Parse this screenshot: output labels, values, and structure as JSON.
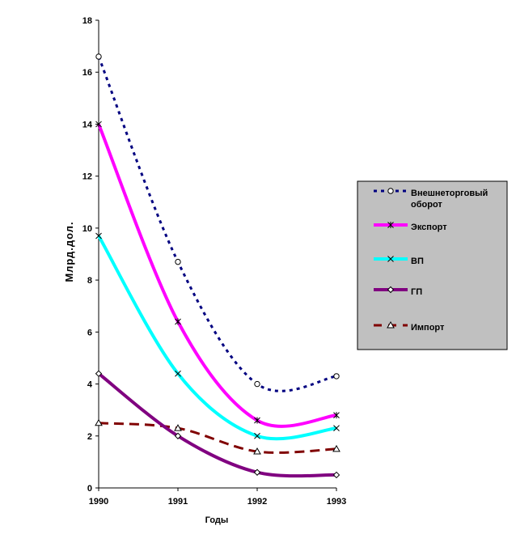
{
  "chart_data": {
    "type": "line",
    "title": "",
    "xlabel": "Годы",
    "ylabel": "Млрд.дол.",
    "x": [
      "1990",
      "1991",
      "1992",
      "1993"
    ],
    "ylim": [
      0,
      18
    ],
    "yticks": [
      "0",
      "2",
      "4",
      "6",
      "8",
      "10",
      "12",
      "14",
      "16",
      "18"
    ],
    "grid": false,
    "legend_position": "right",
    "series": [
      {
        "name": "Внешнеторговый оборот",
        "name_lines": [
          "Внешнеторговый",
          "оборот"
        ],
        "values": [
          16.6,
          8.7,
          4.0,
          4.3
        ],
        "color": "#000080",
        "dash": "dotted",
        "marker": "circle"
      },
      {
        "name": "Экспорт",
        "name_lines": [
          "Экспорт"
        ],
        "values": [
          14.0,
          6.4,
          2.6,
          2.8
        ],
        "color": "#FF00FF",
        "dash": "solid",
        "marker": "asterisk"
      },
      {
        "name": "ВП",
        "name_lines": [
          "ВП"
        ],
        "values": [
          9.7,
          4.4,
          2.0,
          2.3
        ],
        "color": "#00FFFF",
        "dash": "solid",
        "marker": "x"
      },
      {
        "name": "ГП",
        "name_lines": [
          "ГП"
        ],
        "values": [
          4.4,
          2.0,
          0.6,
          0.5
        ],
        "color": "#800080",
        "dash": "solid",
        "marker": "diamond"
      },
      {
        "name": "Импорт",
        "name_lines": [
          "Импорт"
        ],
        "values": [
          2.5,
          2.3,
          1.4,
          1.5
        ],
        "color": "#800000",
        "dash": "dashed",
        "marker": "triangle"
      }
    ],
    "legend_background": "#C0C0C0"
  }
}
